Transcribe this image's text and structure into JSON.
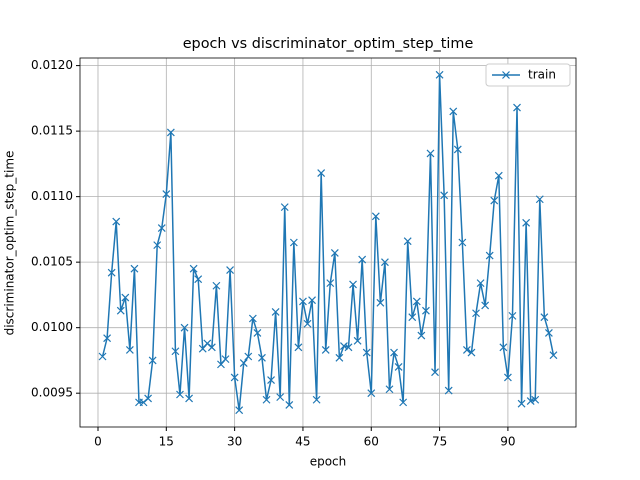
{
  "chart_data": {
    "type": "line",
    "title": "epoch vs discriminator_optim_step_time",
    "x_label": "epoch",
    "y_label": "discriminator_optim_step_time",
    "x": [
      1,
      2,
      3,
      4,
      5,
      6,
      7,
      8,
      9,
      10,
      11,
      12,
      13,
      14,
      15,
      16,
      17,
      18,
      19,
      20,
      21,
      22,
      23,
      24,
      25,
      26,
      27,
      28,
      29,
      30,
      31,
      32,
      33,
      34,
      35,
      36,
      37,
      38,
      39,
      40,
      41,
      42,
      43,
      44,
      45,
      46,
      47,
      48,
      49,
      50,
      51,
      52,
      53,
      54,
      55,
      56,
      57,
      58,
      59,
      60,
      61,
      62,
      63,
      64,
      65,
      66,
      67,
      68,
      69,
      70,
      71,
      72,
      73,
      74,
      75,
      76,
      77,
      78,
      79,
      80,
      81,
      82,
      83,
      84,
      85,
      86,
      87,
      88,
      89,
      90,
      91,
      92,
      93,
      94,
      95,
      96,
      97,
      98,
      99,
      100
    ],
    "series": [
      {
        "name": "train",
        "color": "#1f77b4",
        "values": [
          0.00978,
          0.00992,
          0.01042,
          0.01081,
          0.01013,
          0.01023,
          0.00983,
          0.01045,
          0.00943,
          0.00943,
          0.00946,
          0.00975,
          0.01063,
          0.01076,
          0.01102,
          0.01149,
          0.00982,
          0.00949,
          0.01,
          0.00946,
          0.01045,
          0.01037,
          0.00984,
          0.00988,
          0.00985,
          0.01032,
          0.00972,
          0.00976,
          0.01044,
          0.00962,
          0.00937,
          0.00973,
          0.00978,
          0.01007,
          0.00996,
          0.00977,
          0.00945,
          0.0096,
          0.01012,
          0.00947,
          0.01092,
          0.00941,
          0.01065,
          0.00985,
          0.0102,
          0.01003,
          0.01021,
          0.00945,
          0.01118,
          0.00983,
          0.01034,
          0.01057,
          0.00977,
          0.00986,
          0.00985,
          0.01033,
          0.0099,
          0.01052,
          0.00981,
          0.0095,
          0.01085,
          0.01019,
          0.0105,
          0.00953,
          0.00981,
          0.0097,
          0.00943,
          0.01066,
          0.01008,
          0.0102,
          0.00994,
          0.01013,
          0.01133,
          0.00966,
          0.01193,
          0.01101,
          0.00952,
          0.01165,
          0.01136,
          0.01065,
          0.00983,
          0.00981,
          0.01011,
          0.01034,
          0.01017,
          0.01055,
          0.01097,
          0.01116,
          0.00985,
          0.00962,
          0.01009,
          0.01168,
          0.00942,
          0.0108,
          0.00944,
          0.00945,
          0.01098,
          0.01008,
          0.00996,
          0.00979
        ]
      }
    ],
    "xlim": [
      -3.95,
      104.95
    ],
    "xticks": [
      0,
      15,
      30,
      45,
      60,
      75,
      90
    ],
    "ylim": [
      0.009242,
      0.012058
    ],
    "yticks": [
      {
        "value": 0.0095,
        "label": "0.0095"
      },
      {
        "value": 0.01,
        "label": "0.0100"
      },
      {
        "value": 0.0105,
        "label": "0.0105"
      },
      {
        "value": 0.011,
        "label": "0.0110"
      },
      {
        "value": 0.0115,
        "label": "0.0115"
      },
      {
        "value": 0.012,
        "label": "0.0120"
      }
    ],
    "grid": true,
    "legend": "upper right",
    "marker": "x"
  }
}
